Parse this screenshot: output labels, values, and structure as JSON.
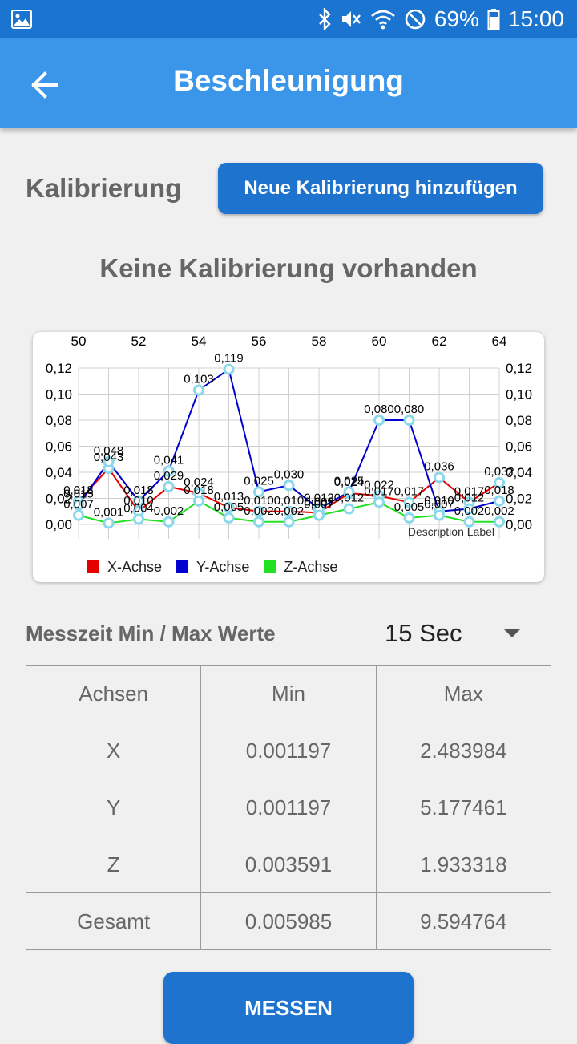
{
  "status_bar": {
    "battery": "69%",
    "time": "15:00",
    "icons": [
      "gallery-icon",
      "bluetooth-icon",
      "mute-icon",
      "wifi-icon",
      "do-not-disturb-icon",
      "battery-icon"
    ]
  },
  "app_bar": {
    "title": "Beschleunigung"
  },
  "calibration": {
    "label": "Kalibrierung",
    "add_button": "Neue Kalibrierung hinzufügen",
    "empty_text": "Keine Kalibrierung vorhanden"
  },
  "chart_data": {
    "type": "line",
    "x": [
      50,
      51,
      52,
      53,
      54,
      55,
      56,
      57,
      58,
      59,
      60,
      61,
      62,
      63,
      64
    ],
    "x_ticks": [
      "50",
      "52",
      "54",
      "56",
      "58",
      "60",
      "62",
      "64"
    ],
    "y_ticks": [
      "0,00",
      "0,02",
      "0,04",
      "0,06",
      "0,08",
      "0,10",
      "0,12"
    ],
    "ylim": [
      0,
      0.12
    ],
    "xlim": [
      50,
      64
    ],
    "description": "Description Label",
    "grid": true,
    "legend_position": "bottom-left",
    "series": [
      {
        "name": "X-Achse",
        "color": "#e50000",
        "values": [
          0.018,
          0.043,
          0.01,
          0.029,
          0.024,
          0.013,
          0.01,
          0.01,
          0.009,
          0.024,
          0.022,
          0.017,
          0.036,
          0.017,
          0.032
        ],
        "labels": [
          "0,018",
          "0,043",
          "0,010",
          "0,029",
          "0,024",
          "0,013",
          "0,010",
          "0,010",
          "0,009",
          "0,024",
          "0,022",
          "0,017",
          "0,036",
          "0,017",
          "0,032"
        ]
      },
      {
        "name": "Y-Achse",
        "color": "#0000d0",
        "values": [
          0.015,
          0.048,
          0.018,
          0.041,
          0.103,
          0.119,
          0.025,
          0.03,
          0.012,
          0.025,
          0.08,
          0.08,
          0.01,
          0.012,
          0.018
        ],
        "labels": [
          "0,015",
          "0,048",
          "0,018",
          "0,041",
          "0,103",
          "0,119",
          "0,025",
          "0,030",
          "0,012",
          "0,025",
          "0,080",
          "0,080",
          "0,010",
          "0,012",
          "0,018"
        ]
      },
      {
        "name": "Z-Achse",
        "color": "#22e022",
        "values": [
          0.007,
          0.001,
          0.004,
          0.002,
          0.018,
          0.005,
          0.002,
          0.002,
          0.007,
          0.012,
          0.017,
          0.005,
          0.007,
          0.002,
          0.002
        ],
        "labels": [
          "0,007",
          "0,001",
          "0,004",
          "0,002",
          "0,018",
          "0,005",
          "0,002",
          "0,002",
          "0,007",
          "0,012",
          "0,017",
          "0,005",
          "0,007",
          "0,002",
          "0,002"
        ]
      }
    ]
  },
  "measure_time": {
    "label": "Messzeit Min / Max Werte",
    "selected": "15 Sec"
  },
  "table": {
    "headers": [
      "Achsen",
      "Min",
      "Max"
    ],
    "rows": [
      [
        "X",
        "0.001197",
        "2.483984"
      ],
      [
        "Y",
        "0.001197",
        "5.177461"
      ],
      [
        "Z",
        "0.003591",
        "1.933318"
      ],
      [
        "Gesamt",
        "0.005985",
        "9.594764"
      ]
    ]
  },
  "measure_button": "MESSEN"
}
